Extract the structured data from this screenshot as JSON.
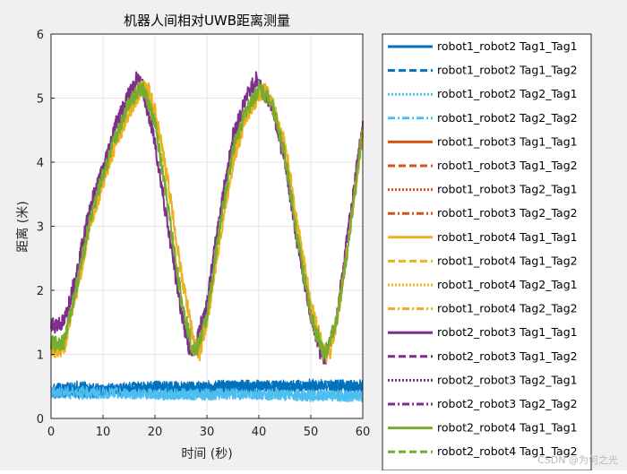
{
  "chart_data": {
    "type": "line",
    "title": "机器人间相对UWB距离测量",
    "xlabel": "时间 (秒)",
    "ylabel": "距离 (米)",
    "xlim": [
      0,
      60
    ],
    "ylim": [
      0,
      6
    ],
    "x_ticks": [
      "0",
      "10",
      "20",
      "30",
      "40",
      "50",
      "60"
    ],
    "y_ticks": [
      "0",
      "1",
      "2",
      "3",
      "4",
      "5",
      "6"
    ],
    "grid": true,
    "legend_position": "right, outside plot",
    "series": [
      {
        "name": "robot1_robot2 Tag1_Tag1",
        "color": "#0072BD",
        "style": "solid",
        "x": [
          0,
          5,
          10,
          15,
          20,
          25,
          30,
          35,
          40,
          45,
          50,
          55,
          60
        ],
        "y": [
          0.45,
          0.5,
          0.45,
          0.48,
          0.5,
          0.47,
          0.5,
          0.52,
          0.5,
          0.5,
          0.53,
          0.52,
          0.5
        ]
      },
      {
        "name": "robot1_robot2 Tag1_Tag2",
        "color": "#0072BD",
        "style": "dashed",
        "x": [
          0,
          10,
          20,
          30,
          40,
          50,
          60
        ],
        "y": [
          0.4,
          0.42,
          0.5,
          0.48,
          0.52,
          0.5,
          0.52
        ]
      },
      {
        "name": "robot1_robot2 Tag2_Tag1",
        "color": "#4DBEEE",
        "style": "dotted",
        "x": [
          0,
          10,
          20,
          30,
          40,
          50,
          60
        ],
        "y": [
          0.42,
          0.4,
          0.38,
          0.38,
          0.38,
          0.35,
          0.35
        ]
      },
      {
        "name": "robot1_robot2 Tag2_Tag2",
        "color": "#4DBEEE",
        "style": "dashdot",
        "x": [
          0,
          5,
          10,
          15,
          20,
          25,
          30,
          35,
          40,
          45,
          50,
          55,
          60
        ],
        "y": [
          0.4,
          0.38,
          0.4,
          0.4,
          0.38,
          0.38,
          0.37,
          0.4,
          0.38,
          0.38,
          0.36,
          0.36,
          0.35
        ]
      },
      {
        "name": "robot1_robot3 Tag1_Tag1",
        "color": "#D95319",
        "style": "solid",
        "x": [],
        "y": []
      },
      {
        "name": "robot1_robot3 Tag1_Tag2",
        "color": "#D95319",
        "style": "dashed",
        "x": [],
        "y": []
      },
      {
        "name": "robot1_robot3 Tag2_Tag1",
        "color": "#D95319",
        "style": "dotted",
        "x": [],
        "y": []
      },
      {
        "name": "robot1_robot3 Tag2_Tag2",
        "color": "#D95319",
        "style": "dashdot",
        "x": [],
        "y": []
      },
      {
        "name": "robot1_robot4 Tag1_Tag1",
        "color": "#EDB120",
        "style": "solid",
        "x": [
          0,
          2.5,
          5,
          7.5,
          10,
          12.5,
          15,
          17.5,
          18.5,
          20,
          22.5,
          25,
          27.5,
          28.5,
          30,
          32.5,
          35,
          37.5,
          40,
          41,
          42.5,
          45,
          47.5,
          50,
          52.5,
          53.5,
          55,
          57.5,
          60
        ],
        "y": [
          1.05,
          1.1,
          2.0,
          3.0,
          3.7,
          4.3,
          4.8,
          5.15,
          5.2,
          4.8,
          3.7,
          2.3,
          1.2,
          1.0,
          1.5,
          2.8,
          4.0,
          4.7,
          5.05,
          5.15,
          4.95,
          4.3,
          3.0,
          1.8,
          1.05,
          0.95,
          1.5,
          2.9,
          4.5
        ]
      },
      {
        "name": "robot1_robot4 Tag1_Tag2",
        "color": "#EDB120",
        "style": "dashed",
        "x": [],
        "y": []
      },
      {
        "name": "robot1_robot4 Tag2_Tag1",
        "color": "#EDB120",
        "style": "dotted",
        "x": [],
        "y": []
      },
      {
        "name": "robot1_robot4 Tag2_Tag2",
        "color": "#EDB120",
        "style": "dashdot",
        "x": [],
        "y": []
      },
      {
        "name": "robot2_robot3 Tag1_Tag1",
        "color": "#7E2F8E",
        "style": "solid",
        "x": [
          0,
          2.5,
          5,
          7.5,
          10,
          12.5,
          15,
          16.5,
          17.5,
          20,
          22.5,
          25,
          26.5,
          27.5,
          30,
          32.5,
          35,
          37.5,
          39.5,
          40,
          42.5,
          45,
          47.5,
          50,
          52,
          53,
          55,
          57.5,
          60
        ],
        "y": [
          1.45,
          1.5,
          2.3,
          3.3,
          3.9,
          4.6,
          5.05,
          5.3,
          5.2,
          4.3,
          3.0,
          1.7,
          1.1,
          1.05,
          1.8,
          3.2,
          4.4,
          5.0,
          5.3,
          5.25,
          4.9,
          4.0,
          2.7,
          1.6,
          1.0,
          0.95,
          1.6,
          3.1,
          4.6
        ]
      },
      {
        "name": "robot2_robot3 Tag1_Tag2",
        "color": "#7E2F8E",
        "style": "dashed",
        "x": [],
        "y": []
      },
      {
        "name": "robot2_robot3 Tag2_Tag1",
        "color": "#7E2F8E",
        "style": "dotted",
        "x": [],
        "y": []
      },
      {
        "name": "robot2_robot3 Tag2_Tag2",
        "color": "#7E2F8E",
        "style": "dashdot",
        "x": [],
        "y": []
      },
      {
        "name": "robot2_robot4 Tag1_Tag1",
        "color": "#77AC30",
        "style": "solid",
        "x": [
          0,
          2.5,
          5,
          7.5,
          10,
          12.5,
          15,
          17,
          18,
          20,
          22.5,
          25,
          27,
          28,
          30,
          32.5,
          35,
          37.5,
          40,
          42.5,
          45,
          47.5,
          50,
          52.5,
          55,
          57.5,
          60
        ],
        "y": [
          1.15,
          1.2,
          2.1,
          3.1,
          3.8,
          4.4,
          4.95,
          5.15,
          5.1,
          4.6,
          3.3,
          1.9,
          1.15,
          1.05,
          1.6,
          3.0,
          4.2,
          4.8,
          5.15,
          4.95,
          4.1,
          2.8,
          1.6,
          1.0,
          1.5,
          2.9,
          4.5
        ]
      },
      {
        "name": "robot2_robot4 Tag1_Tag2",
        "color": "#77AC30",
        "style": "dashed",
        "x": [],
        "y": []
      }
    ]
  },
  "watermark": "CSDN @为何之光"
}
